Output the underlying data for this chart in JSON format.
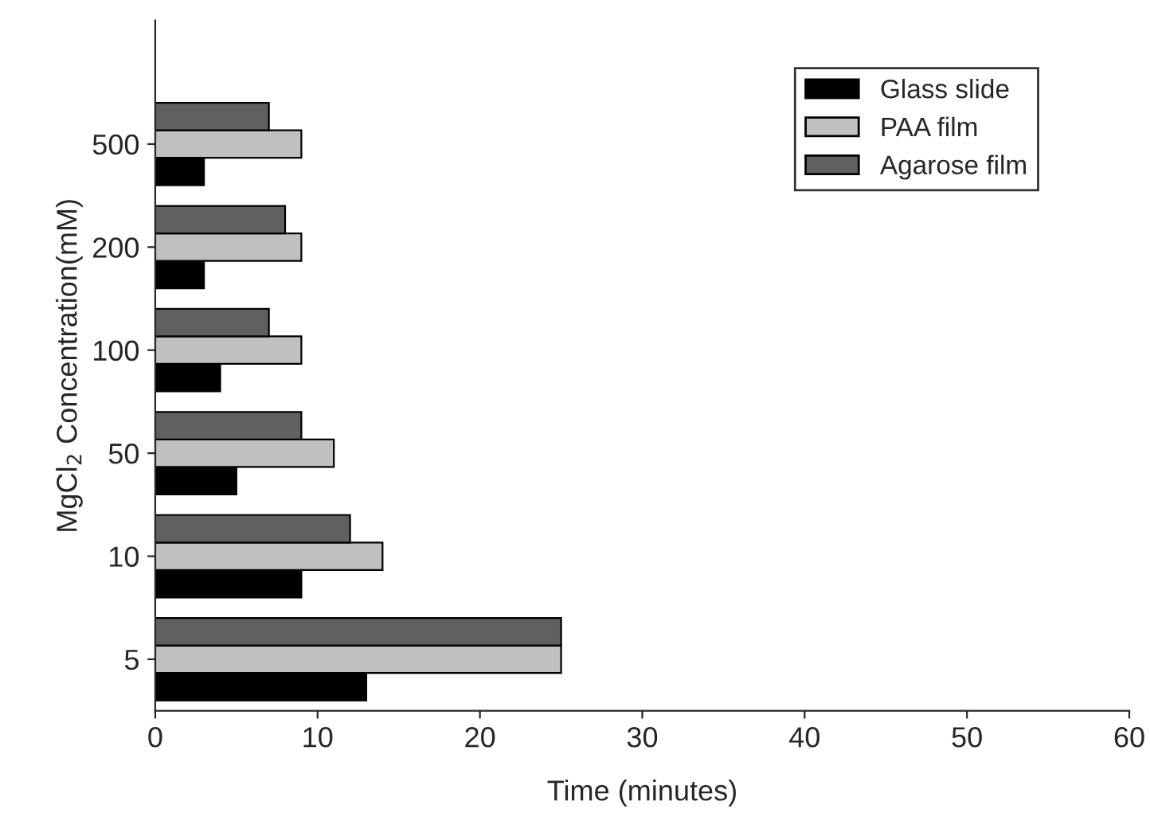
{
  "chart_data": {
    "type": "bar",
    "orientation": "horizontal",
    "xlabel": "Time (minutes)",
    "ylabel": "MgCl$_{2}$ Concentration(mM)",
    "categories": [
      "500",
      "200",
      "100",
      "50",
      "10",
      "5"
    ],
    "series": [
      {
        "name": "Glass slide",
        "color": "#000000",
        "values": [
          3,
          3,
          4,
          5,
          9,
          13
        ]
      },
      {
        "name": "PAA film",
        "color": "#c0c0c0",
        "values": [
          9,
          9,
          9,
          11,
          14,
          25
        ]
      },
      {
        "name": "Agarose film",
        "color": "#606060",
        "values": [
          7,
          8,
          7,
          9,
          12,
          25
        ]
      }
    ],
    "xlim": [
      0,
      60
    ],
    "xticks": [
      0,
      10,
      20,
      30,
      40,
      50,
      60
    ],
    "grid": false,
    "legend": "top right"
  }
}
